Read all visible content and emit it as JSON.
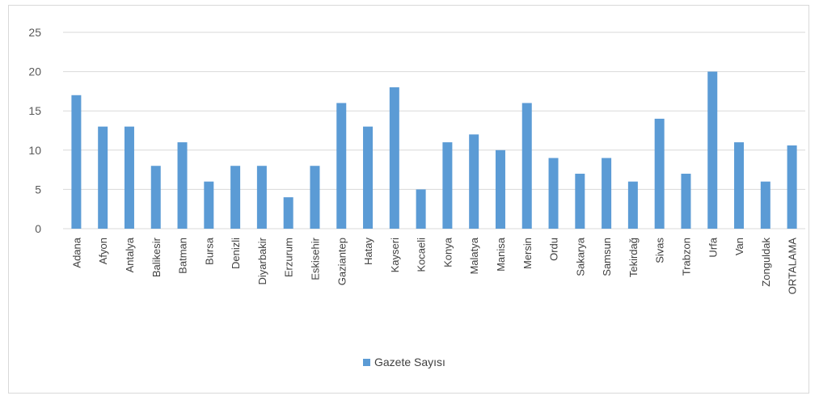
{
  "chart_data": {
    "type": "bar",
    "categories": [
      "Adana",
      "Afyon",
      "Antalya",
      "Balikesir",
      "Batman",
      "Bursa",
      "Denizli",
      "Diyarbakir",
      "Erzurum",
      "Eskisehir",
      "Gaziantep",
      "Hatay",
      "Kayseri",
      "Kocaeli",
      "Konya",
      "Malatya",
      "Manisa",
      "Mersin",
      "Ordu",
      "Sakarya",
      "Samsun",
      "Tekirdağ",
      "Sivas",
      "Trabzon",
      "Urfa",
      "Van",
      "Zonguldak",
      "ORTALAMA"
    ],
    "series": [
      {
        "name": "Gazete Sayısı",
        "color": "#5b9bd5",
        "values": [
          17,
          13,
          13,
          8,
          11,
          6,
          8,
          8,
          4,
          8,
          16,
          13,
          18,
          5,
          11,
          12,
          10,
          16,
          9,
          7,
          9,
          6,
          14,
          7,
          20,
          11,
          6,
          10.6
        ]
      }
    ],
    "yticks": [
      "0",
      "5",
      "10",
      "15",
      "20",
      "25"
    ],
    "ylim": [
      0,
      25
    ],
    "grid": true,
    "legend_position": "bottom"
  }
}
